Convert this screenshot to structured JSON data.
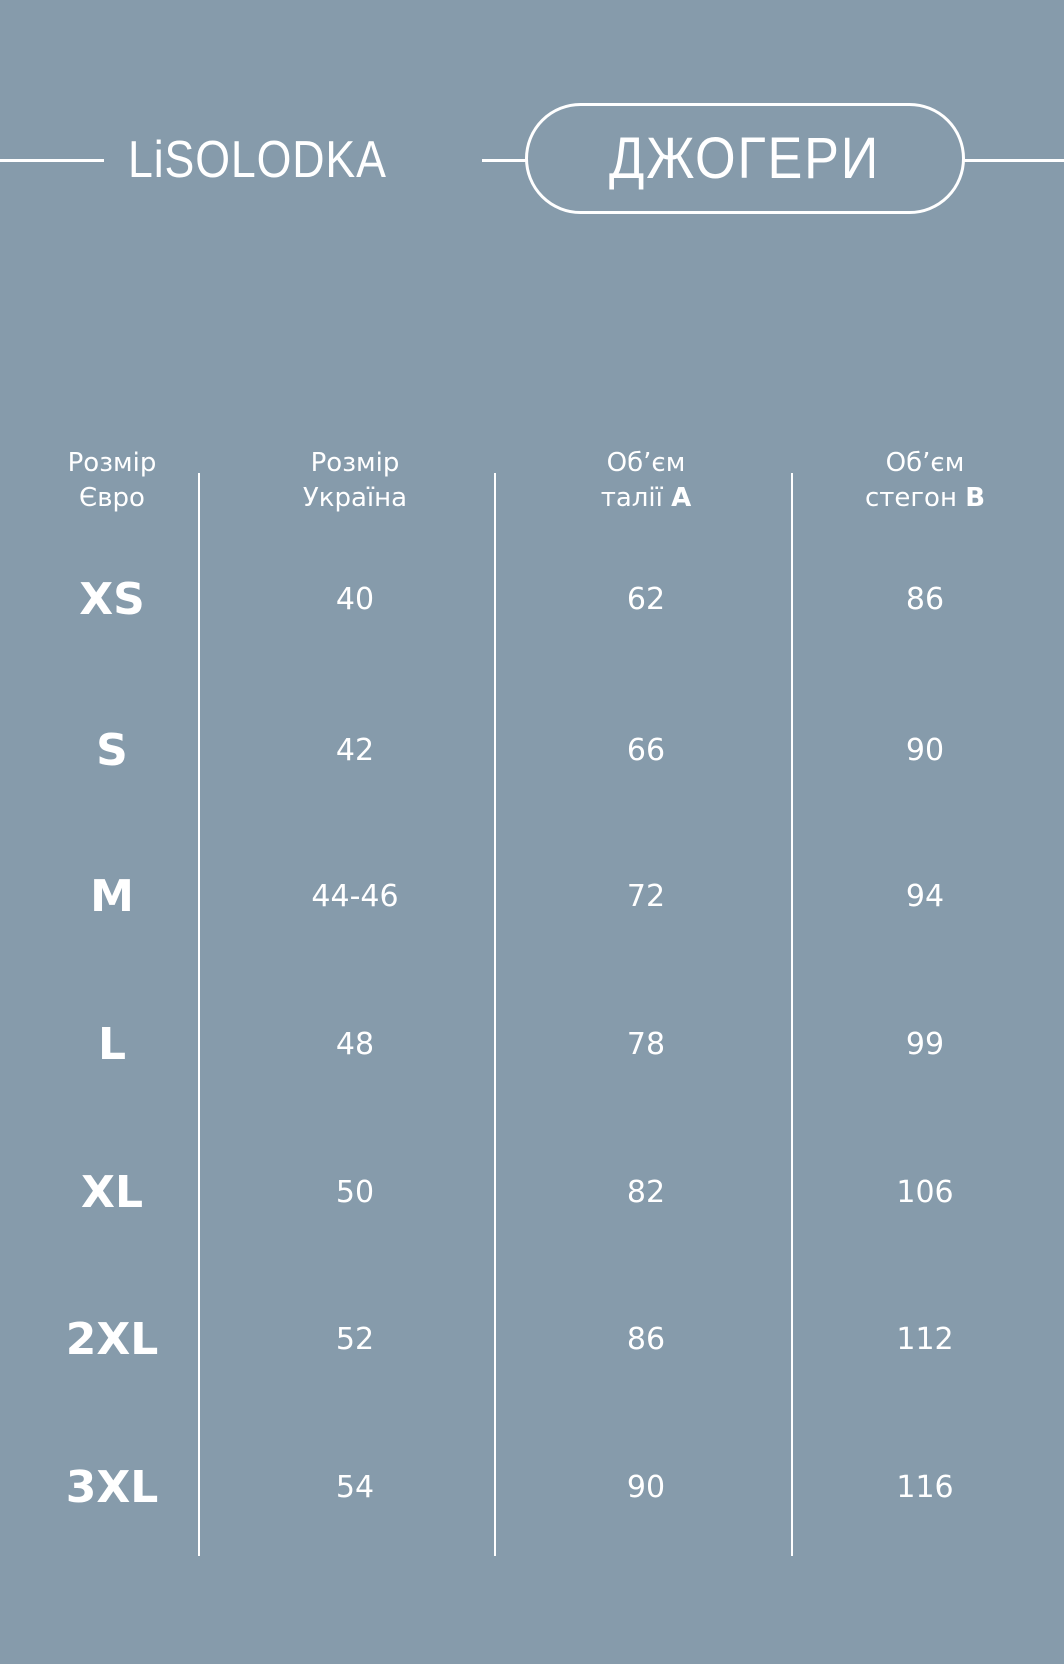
{
  "colors": {
    "background": "#869bab",
    "foreground": "#ffffff"
  },
  "brand": {
    "logo": "LiSOLODKA"
  },
  "title": "ДЖОГЕРИ",
  "table": {
    "headers": [
      {
        "line1": "Розмір",
        "line2": "Євро",
        "bold": ""
      },
      {
        "line1": "Розмір",
        "line2": "Україна",
        "bold": ""
      },
      {
        "line1": "Об’єм",
        "line2": "талії",
        "bold": "A"
      },
      {
        "line1": "Об’єм",
        "line2": "стегон",
        "bold": "B"
      }
    ],
    "rows": [
      [
        "XS",
        "40",
        "62",
        "86"
      ],
      [
        "S",
        "42",
        "66",
        "90"
      ],
      [
        "M",
        "44-46",
        "72",
        "94"
      ],
      [
        "L",
        "48",
        "78",
        "99"
      ],
      [
        "XL",
        "50",
        "82",
        "106"
      ],
      [
        "2XL",
        "52",
        "86",
        "112"
      ],
      [
        "3XL",
        "54",
        "90",
        "116"
      ]
    ]
  }
}
